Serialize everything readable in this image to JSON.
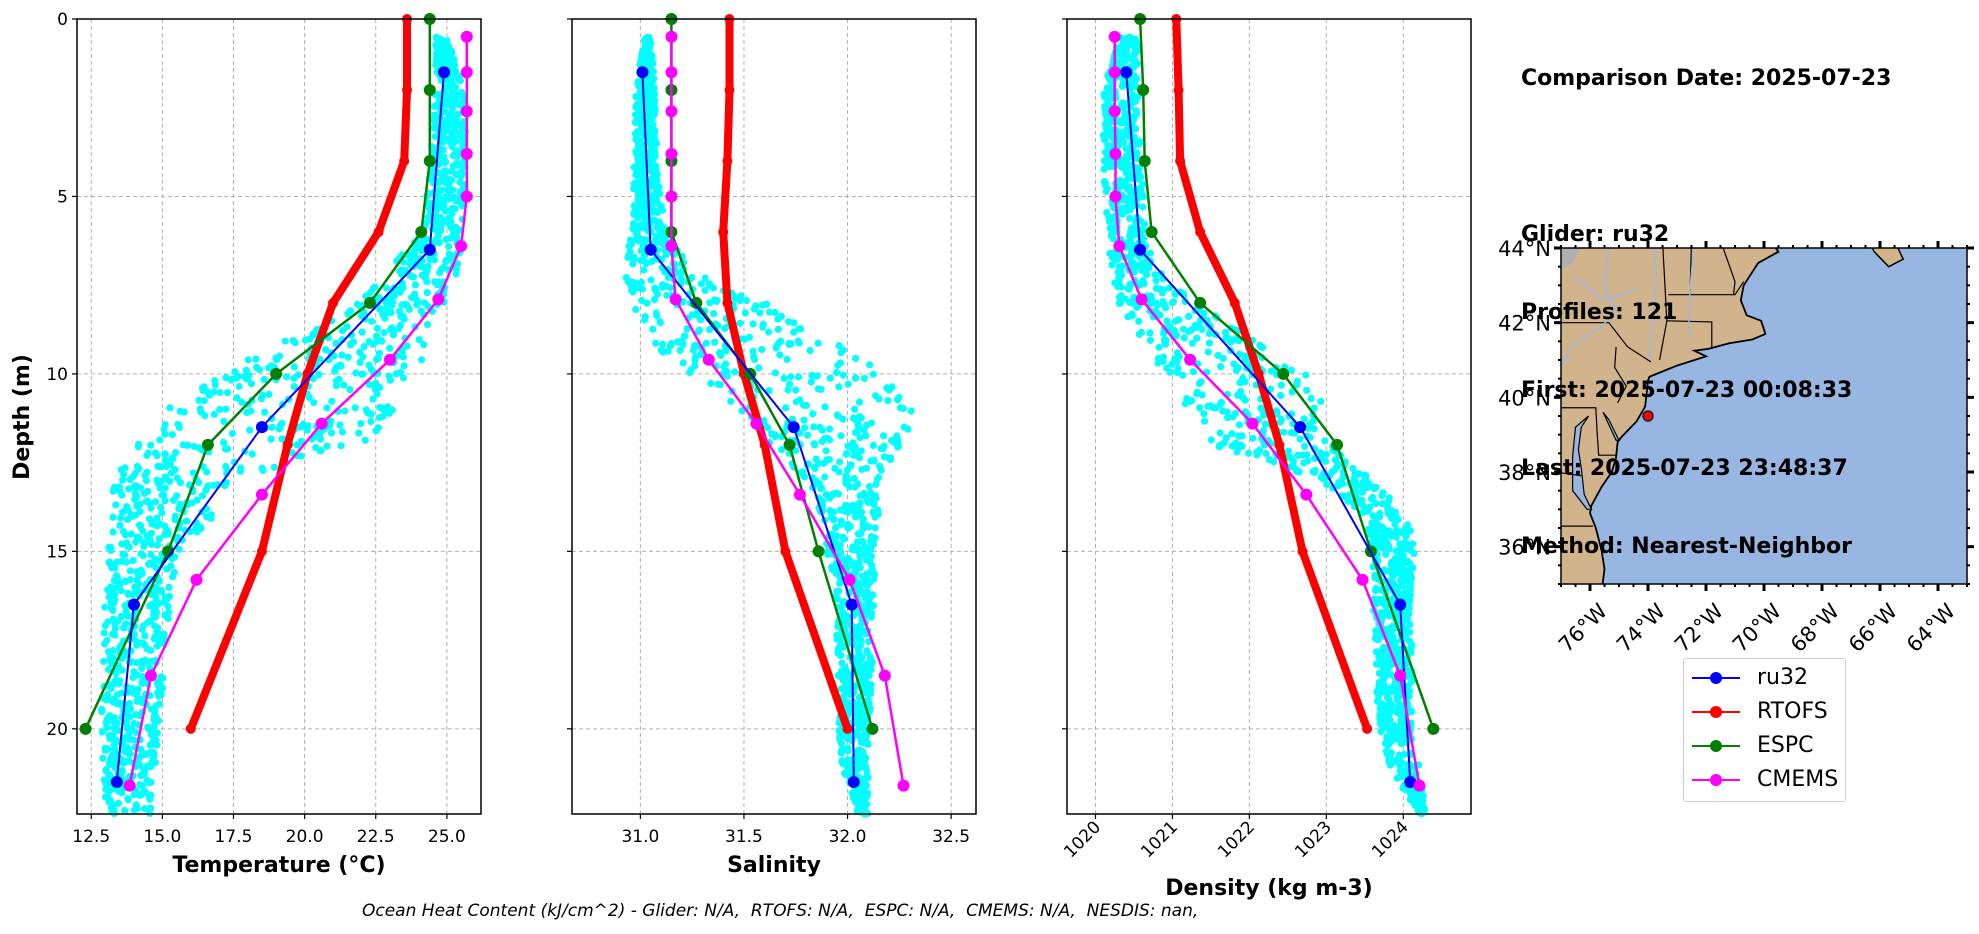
{
  "info": {
    "comparison_date": "Comparison Date: 2025-07-23",
    "glider": "Glider: ru32",
    "profiles": "Profiles: 121",
    "first": "First: 2025-07-23 00:08:33",
    "last": "Last: 2025-07-23 23:48:37",
    "method": "Method: Nearest-Neighbor"
  },
  "footer": "Ocean Heat Content (kJ/cm^2) - Glider: N/A,  RTOFS: N/A,  ESPC: N/A,  CMEMS: N/A,  NESDIS: nan,",
  "legend": [
    {
      "label": "ru32",
      "color": "#0000ff"
    },
    {
      "label": "RTOFS",
      "color": "#ff0000"
    },
    {
      "label": "ESPC",
      "color": "#008000"
    },
    {
      "label": "CMEMS",
      "color": "#ff00ff"
    }
  ],
  "colors": {
    "glider_scatter": "#00ffff",
    "ru32": "#0000ff",
    "RTOFS": "#ff0000",
    "ESPC": "#008000",
    "CMEMS": "#ff00ff",
    "land": "#d2b48c",
    "ocean": "#97b6e1",
    "grid": "#b0b0b0"
  },
  "chart_data": [
    {
      "type": "line",
      "title": "",
      "xlabel": "Temperature (°C)",
      "ylabel": "Depth (m)",
      "xlim": [
        12.0,
        26.2
      ],
      "ylim": [
        22.4,
        0
      ],
      "xticks": [
        12.5,
        15.0,
        17.5,
        20.0,
        22.5,
        25.0
      ],
      "xtick_labels": [
        "12.5",
        "15.0",
        "17.5",
        "20.0",
        "22.5",
        "25.0"
      ],
      "yticks": [
        0,
        5,
        10,
        15,
        20
      ],
      "ytick_labels": [
        "0",
        "5",
        "10",
        "15",
        "20"
      ],
      "grid": true,
      "scatter_envelope": {
        "name": "ru32 profiles",
        "depth": [
          0.5,
          2,
          4,
          6,
          7,
          8,
          9,
          10,
          11,
          12,
          13,
          14,
          15,
          16,
          17,
          18,
          19,
          20,
          21,
          22.4
        ],
        "min": [
          24.6,
          24.6,
          24.4,
          24.2,
          23.0,
          21.8,
          19.5,
          17.0,
          15.0,
          14.0,
          13.3,
          13.2,
          13.1,
          13.0,
          12.95,
          12.9,
          12.85,
          12.85,
          12.9,
          13.0
        ],
        "max": [
          25.0,
          25.6,
          25.7,
          25.6,
          25.4,
          25.0,
          24.6,
          24.0,
          23.3,
          22.0,
          17.5,
          16.8,
          15.6,
          15.3,
          15.2,
          15.1,
          15.0,
          14.9,
          14.8,
          14.6
        ]
      },
      "series": [
        {
          "name": "ru32",
          "depth": [
            1.5,
            6.5,
            11.5,
            16.5,
            21.5
          ],
          "values": [
            24.9,
            24.4,
            18.5,
            14.0,
            13.4
          ]
        },
        {
          "name": "RTOFS",
          "depth": [
            0,
            2,
            4,
            6,
            8,
            10,
            12,
            15,
            20
          ],
          "values": [
            23.6,
            23.6,
            23.5,
            22.6,
            21.0,
            20.1,
            19.4,
            18.5,
            16.0
          ]
        },
        {
          "name": "ESPC",
          "depth": [
            0,
            2,
            4,
            6,
            8,
            10,
            12,
            15,
            20
          ],
          "values": [
            24.4,
            24.4,
            24.4,
            24.1,
            22.3,
            19.0,
            16.6,
            15.2,
            12.3
          ]
        },
        {
          "name": "CMEMS",
          "depth": [
            0.5,
            1.5,
            2.6,
            3.8,
            5.0,
            6.4,
            7.9,
            9.6,
            11.4,
            13.4,
            15.8,
            18.5,
            21.6
          ],
          "values": [
            25.7,
            25.7,
            25.7,
            25.7,
            25.7,
            25.5,
            24.7,
            23.0,
            20.6,
            18.5,
            16.2,
            14.6,
            13.85
          ]
        }
      ]
    },
    {
      "type": "line",
      "title": "",
      "xlabel": "Salinity",
      "ylabel": "",
      "xlim": [
        30.67,
        32.62
      ],
      "ylim": [
        22.4,
        0
      ],
      "xticks": [
        31.0,
        31.5,
        32.0,
        32.5
      ],
      "xtick_labels": [
        "31.0",
        "31.5",
        "32.0",
        "32.5"
      ],
      "yticks": [
        0,
        5,
        10,
        15,
        20
      ],
      "grid": true,
      "scatter_envelope": {
        "name": "ru32 profiles",
        "depth": [
          0.5,
          2,
          4,
          6,
          7,
          8,
          9,
          10,
          11,
          12,
          13,
          14,
          15,
          16,
          17,
          18,
          19,
          20,
          21,
          22.4
        ],
        "min": [
          31.02,
          30.98,
          30.97,
          30.96,
          30.92,
          30.95,
          31.05,
          31.2,
          31.45,
          31.6,
          31.8,
          31.88,
          31.9,
          31.93,
          31.94,
          31.95,
          31.95,
          31.95,
          31.97,
          32.05
        ],
        "max": [
          31.05,
          31.07,
          31.08,
          31.12,
          31.25,
          31.6,
          31.9,
          32.2,
          32.35,
          32.25,
          32.15,
          32.15,
          32.14,
          32.13,
          32.12,
          32.12,
          32.12,
          32.1,
          32.1,
          32.1
        ]
      },
      "series": [
        {
          "name": "ru32",
          "depth": [
            1.5,
            6.5,
            11.5,
            16.5,
            21.5
          ],
          "values": [
            31.01,
            31.05,
            31.74,
            32.02,
            32.03
          ]
        },
        {
          "name": "RTOFS",
          "depth": [
            0,
            2,
            4,
            6,
            8,
            10,
            12,
            15,
            20
          ],
          "values": [
            31.43,
            31.43,
            31.42,
            31.4,
            31.42,
            31.5,
            31.6,
            31.7,
            32.0
          ]
        },
        {
          "name": "ESPC",
          "depth": [
            0,
            2,
            4,
            6,
            8,
            10,
            12,
            15,
            20
          ],
          "values": [
            31.15,
            31.15,
            31.15,
            31.15,
            31.27,
            31.53,
            31.72,
            31.86,
            32.12
          ]
        },
        {
          "name": "CMEMS",
          "depth": [
            0.5,
            1.5,
            2.6,
            3.8,
            5.0,
            6.4,
            7.9,
            9.6,
            11.4,
            13.4,
            15.8,
            18.5,
            21.6
          ],
          "values": [
            31.15,
            31.15,
            31.15,
            31.15,
            31.15,
            31.15,
            31.17,
            31.33,
            31.56,
            31.77,
            32.01,
            32.18,
            32.27
          ]
        }
      ]
    },
    {
      "type": "line",
      "title": "",
      "xlabel": "Density (kg m-3)",
      "ylabel": "",
      "xlim": [
        1019.63,
        1024.88
      ],
      "ylim": [
        22.4,
        0
      ],
      "xticks": [
        1020,
        1021,
        1022,
        1023,
        1024
      ],
      "xtick_labels": [
        "1020",
        "1021",
        "1022",
        "1023",
        "1024"
      ],
      "yticks": [
        0,
        5,
        10,
        15,
        20
      ],
      "grid": true,
      "scatter_envelope": {
        "name": "ru32 profiles",
        "depth": [
          0.5,
          2,
          4,
          6,
          7,
          8,
          9,
          10,
          11,
          12,
          13,
          14,
          15,
          16,
          17,
          18,
          19,
          20,
          21,
          22.4
        ],
        "min": [
          1020.3,
          1020.1,
          1020.1,
          1020.15,
          1020.2,
          1020.3,
          1020.6,
          1020.9,
          1021.2,
          1021.5,
          1022.9,
          1023.5,
          1023.6,
          1023.6,
          1023.62,
          1023.65,
          1023.65,
          1023.7,
          1023.8,
          1024.2
        ]
      },
      "series": [
        {
          "name": "ru32",
          "depth": [
            1.5,
            6.5,
            11.5,
            16.5,
            21.5
          ],
          "values": [
            1020.4,
            1020.58,
            1022.66,
            1023.96,
            1024.09
          ]
        },
        {
          "name": "RTOFS",
          "depth": [
            0,
            2,
            4,
            6,
            8,
            10,
            12,
            15,
            20
          ],
          "values": [
            1021.05,
            1021.08,
            1021.1,
            1021.36,
            1021.81,
            1022.12,
            1022.39,
            1022.69,
            1023.53
          ]
        },
        {
          "name": "ESPC",
          "depth": [
            0,
            2,
            4,
            6,
            8,
            10,
            12,
            15,
            20
          ],
          "values": [
            1020.58,
            1020.62,
            1020.64,
            1020.73,
            1021.36,
            1022.44,
            1023.14,
            1023.58,
            1024.39
          ]
        },
        {
          "name": "CMEMS",
          "depth": [
            0.5,
            1.5,
            2.6,
            3.8,
            5.0,
            6.4,
            7.9,
            9.6,
            11.4,
            13.4,
            15.8,
            18.5,
            21.6
          ],
          "values": [
            1020.25,
            1020.25,
            1020.25,
            1020.26,
            1020.26,
            1020.31,
            1020.6,
            1021.23,
            1022.04,
            1022.74,
            1023.47,
            1023.96,
            1024.21
          ]
        }
      ]
    },
    {
      "type": "map",
      "title": "",
      "lon_range": [
        -77,
        -63
      ],
      "lat_range": [
        35,
        44
      ],
      "xticks": [
        -76,
        -74,
        -72,
        -70,
        -68,
        -66,
        -64
      ],
      "xtick_labels": [
        "76°W",
        "74°W",
        "72°W",
        "70°W",
        "68°W",
        "66°W",
        "64°W"
      ],
      "yticks": [
        36,
        38,
        40,
        42,
        44
      ],
      "ytick_labels": [
        "36°N",
        "38°N",
        "40°N",
        "42°N",
        "44°N"
      ],
      "glider_position": {
        "lon": -74.0,
        "lat": 39.5
      }
    }
  ]
}
